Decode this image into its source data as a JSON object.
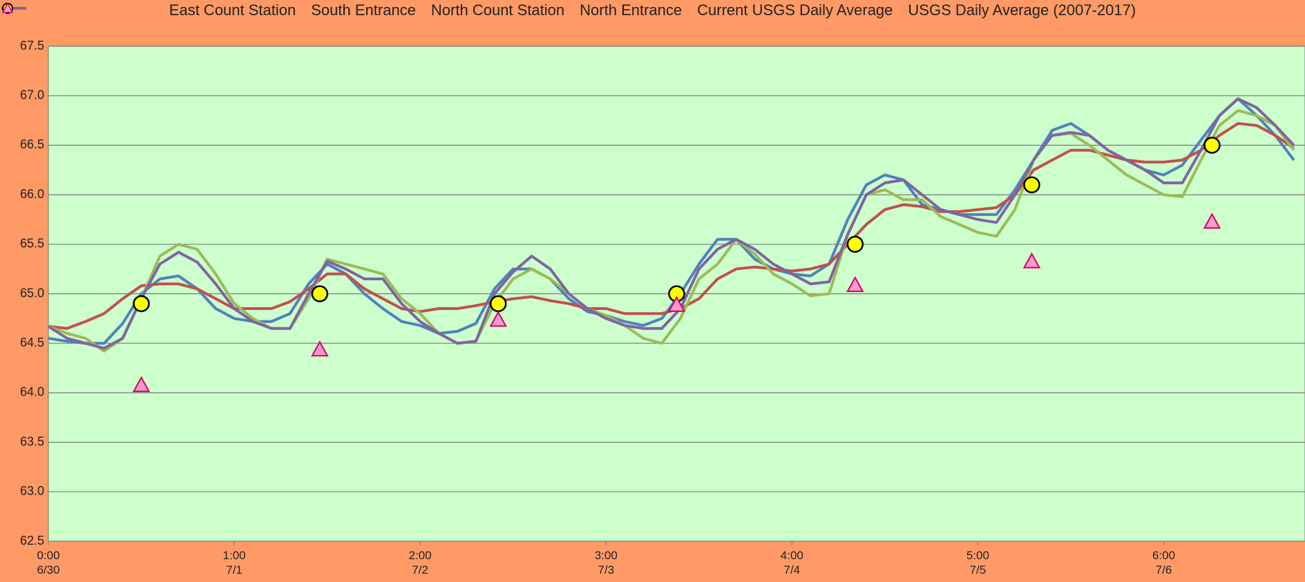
{
  "chart_data": {
    "type": "line",
    "background": "#ff9a66",
    "plot_background": "#ccffcc",
    "grid": true,
    "legend": "top",
    "xlim": [
      0,
      6.76
    ],
    "ylim": [
      62.5,
      67.5
    ],
    "xticks": [
      {
        "value": 0,
        "label": "0:00\n6/30"
      },
      {
        "value": 1,
        "label": "1:00\n7/1"
      },
      {
        "value": 2,
        "label": "2:00\n7/2"
      },
      {
        "value": 3,
        "label": "3:00\n7/3"
      },
      {
        "value": 4,
        "label": "4:00\n7/4"
      },
      {
        "value": 5,
        "label": "5:00\n7/5"
      },
      {
        "value": 6,
        "label": "6:00\n7/6"
      }
    ],
    "yticks": [
      62.5,
      63,
      63.5,
      64,
      64.5,
      65,
      65.5,
      66,
      66.5,
      67,
      67.5
    ],
    "ytick_labels": [
      "62.5",
      "63.0",
      "63.5",
      "64.0",
      "64.5",
      "65.0",
      "65.5",
      "66.0",
      "66.5",
      "67.0",
      "67.5"
    ],
    "x": [
      0,
      0.1,
      0.2,
      0.3,
      0.4,
      0.5,
      0.6,
      0.7,
      0.8,
      0.9,
      1,
      1.1,
      1.2,
      1.3,
      1.4,
      1.5,
      1.6,
      1.7,
      1.8,
      1.9,
      2,
      2.1,
      2.2,
      2.3,
      2.4,
      2.5,
      2.6,
      2.7,
      2.8,
      2.9,
      3,
      3.1,
      3.2,
      3.3,
      3.4,
      3.5,
      3.6,
      3.7,
      3.8,
      3.9,
      4,
      4.1,
      4.2,
      4.3,
      4.4,
      4.5,
      4.6,
      4.7,
      4.8,
      4.9,
      5,
      5.1,
      5.2,
      5.3,
      5.4,
      5.5,
      5.6,
      5.7,
      5.8,
      5.9,
      6,
      6.1,
      6.2,
      6.3,
      6.4,
      6.5,
      6.6,
      6.7
    ],
    "series": [
      {
        "name": "East Count Station",
        "color": "#4f81bd",
        "values": [
          64.55,
          64.52,
          64.5,
          64.5,
          64.7,
          65.0,
          65.15,
          65.18,
          65.05,
          64.85,
          64.75,
          64.72,
          64.72,
          64.8,
          65.1,
          65.3,
          65.2,
          65.0,
          64.85,
          64.72,
          64.68,
          64.6,
          64.62,
          64.7,
          65.05,
          65.25,
          65.25,
          65.15,
          64.95,
          64.82,
          64.78,
          64.72,
          64.68,
          64.75,
          65.0,
          65.3,
          65.55,
          65.55,
          65.35,
          65.25,
          65.2,
          65.18,
          65.3,
          65.75,
          66.1,
          66.2,
          66.15,
          65.9,
          65.85,
          65.8,
          65.8,
          65.8,
          66.05,
          66.35,
          66.65,
          66.72,
          66.6,
          66.45,
          66.35,
          66.25,
          66.2,
          66.3,
          66.55,
          66.8,
          66.97,
          66.8,
          66.6,
          66.35
        ]
      },
      {
        "name": "South Entrance",
        "color": "#c0504d",
        "values": [
          64.67,
          64.65,
          64.72,
          64.8,
          64.95,
          65.08,
          65.1,
          65.1,
          65.05,
          64.95,
          64.85,
          64.85,
          64.85,
          64.92,
          65.05,
          65.2,
          65.2,
          65.05,
          64.95,
          64.85,
          64.82,
          64.85,
          64.85,
          64.88,
          64.92,
          64.95,
          64.97,
          64.93,
          64.9,
          64.85,
          64.85,
          64.8,
          64.8,
          64.8,
          64.85,
          64.95,
          65.15,
          65.25,
          65.27,
          65.25,
          65.23,
          65.25,
          65.3,
          65.5,
          65.7,
          65.85,
          65.9,
          65.88,
          65.83,
          65.83,
          65.85,
          65.87,
          66.0,
          66.25,
          66.35,
          66.45,
          66.45,
          66.4,
          66.35,
          66.33,
          66.33,
          66.35,
          66.45,
          66.6,
          66.72,
          66.7,
          66.6,
          66.47
        ]
      },
      {
        "name": "North Count Station",
        "color": "#9bbb59",
        "values": [
          64.67,
          64.6,
          64.55,
          64.42,
          64.55,
          64.95,
          65.38,
          65.5,
          65.45,
          65.2,
          64.9,
          64.75,
          64.65,
          64.65,
          64.95,
          65.35,
          65.3,
          65.25,
          65.2,
          64.95,
          64.8,
          64.6,
          64.5,
          64.52,
          64.9,
          65.15,
          65.25,
          65.15,
          65.0,
          64.85,
          64.78,
          64.68,
          64.55,
          64.5,
          64.75,
          65.15,
          65.3,
          65.55,
          65.4,
          65.2,
          65.1,
          64.98,
          65.0,
          65.6,
          66.0,
          66.05,
          65.95,
          65.95,
          65.78,
          65.7,
          65.62,
          65.58,
          65.85,
          66.35,
          66.6,
          66.62,
          66.5,
          66.35,
          66.2,
          66.1,
          66.0,
          65.98,
          66.35,
          66.7,
          66.85,
          66.8,
          66.7,
          66.45
        ]
      },
      {
        "name": "North Entrance",
        "color": "#8064a2",
        "values": [
          64.67,
          64.55,
          64.5,
          64.45,
          64.55,
          64.95,
          65.3,
          65.42,
          65.32,
          65.1,
          64.85,
          64.72,
          64.65,
          64.65,
          65.0,
          65.33,
          65.25,
          65.15,
          65.15,
          64.9,
          64.72,
          64.6,
          64.5,
          64.52,
          65.0,
          65.22,
          65.38,
          65.25,
          65.0,
          64.85,
          64.75,
          64.68,
          64.65,
          64.65,
          64.85,
          65.25,
          65.45,
          65.55,
          65.45,
          65.3,
          65.2,
          65.1,
          65.12,
          65.6,
          66.0,
          66.12,
          66.15,
          66.0,
          65.85,
          65.8,
          65.75,
          65.72,
          66.0,
          66.35,
          66.6,
          66.63,
          66.6,
          66.45,
          66.35,
          66.25,
          66.12,
          66.12,
          66.45,
          66.8,
          66.97,
          66.88,
          66.7,
          66.5
        ]
      },
      {
        "name": "Current USGS Daily Average",
        "color": "#ffff00",
        "marker": "circle",
        "x": [
          0.5,
          1.46,
          2.42,
          3.38,
          4.34,
          5.29,
          6.26
        ],
        "values": [
          64.9,
          65.0,
          64.9,
          65.0,
          65.5,
          66.1,
          66.5
        ]
      },
      {
        "name": "USGS Daily Average (2007-2017)",
        "color": "#ff99cc",
        "marker": "triangle",
        "x": [
          0.5,
          1.46,
          2.42,
          3.38,
          4.34,
          5.29,
          6.26
        ],
        "values": [
          64.07,
          64.43,
          64.73,
          64.88,
          65.08,
          65.32,
          65.72
        ]
      }
    ]
  }
}
